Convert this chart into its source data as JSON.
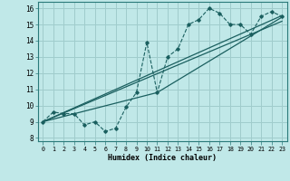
{
  "xlabel": "Humidex (Indice chaleur)",
  "bg_color": "#c0e8e8",
  "grid_color": "#a0cccc",
  "line_color": "#1a5f5f",
  "xlim": [
    -0.5,
    23.5
  ],
  "ylim": [
    7.8,
    16.4
  ],
  "xticks": [
    0,
    1,
    2,
    3,
    4,
    5,
    6,
    7,
    8,
    9,
    10,
    11,
    12,
    13,
    14,
    15,
    16,
    17,
    18,
    19,
    20,
    21,
    22,
    23
  ],
  "yticks": [
    8,
    9,
    10,
    11,
    12,
    13,
    14,
    15,
    16
  ],
  "series1_x": [
    0,
    1,
    2,
    3,
    4,
    5,
    6,
    7,
    8,
    9,
    10,
    11,
    12,
    13,
    14,
    15,
    16,
    17,
    18,
    19,
    20,
    21,
    22,
    23
  ],
  "series1_y": [
    9.0,
    9.6,
    9.5,
    9.5,
    8.8,
    9.0,
    8.4,
    8.6,
    9.9,
    10.8,
    13.9,
    10.8,
    13.0,
    13.5,
    15.0,
    15.3,
    16.0,
    15.7,
    15.0,
    15.0,
    14.4,
    15.5,
    15.8,
    15.5
  ],
  "series2_x": [
    0,
    23
  ],
  "series2_y": [
    9.0,
    15.2
  ],
  "series3_x": [
    0,
    23
  ],
  "series3_y": [
    9.0,
    15.55
  ],
  "series4_x": [
    0,
    11,
    23
  ],
  "series4_y": [
    9.0,
    10.8,
    15.45
  ]
}
